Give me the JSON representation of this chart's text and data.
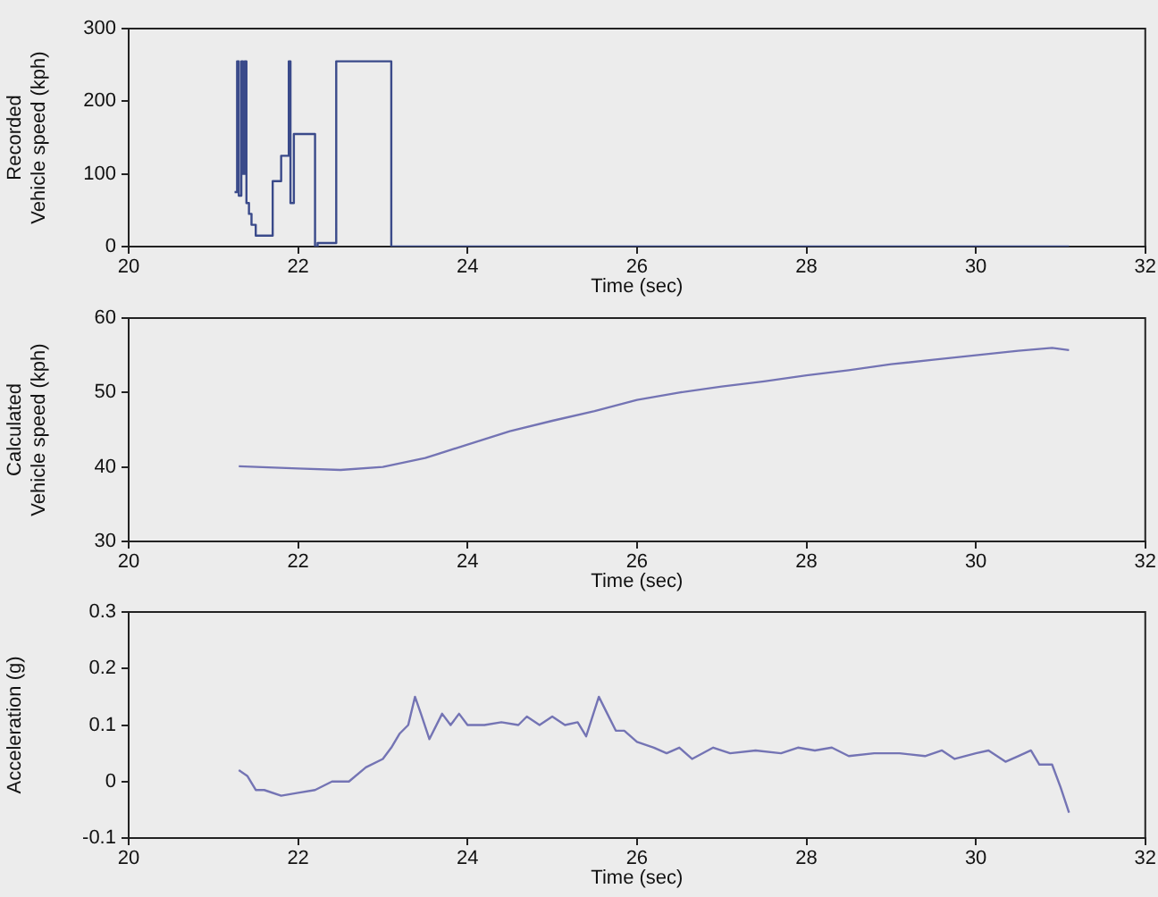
{
  "chart_data": [
    {
      "type": "step",
      "xlabel": "Time (sec)",
      "ylabel": "Recorded\nVehicle speed (kph)",
      "color": "#3a4a8a",
      "x": [
        21.25,
        21.28,
        21.3,
        21.33,
        21.35,
        21.37,
        21.39,
        21.42,
        21.45,
        21.5,
        21.7,
        21.8,
        21.89,
        21.91,
        21.95,
        22.2,
        22.23,
        22.45,
        23.1,
        31.1
      ],
      "values": [
        75,
        255,
        70,
        255,
        100,
        255,
        60,
        45,
        30,
        15,
        90,
        125,
        255,
        60,
        155,
        0,
        5,
        255,
        0,
        0
      ],
      "xlim": [
        20,
        32
      ],
      "ylim": [
        0,
        300
      ],
      "xticks": [
        20,
        22,
        24,
        26,
        28,
        30,
        32
      ],
      "yticks": [
        0,
        100,
        200,
        300
      ]
    },
    {
      "type": "line",
      "xlabel": "Time (sec)",
      "ylabel": "Calculated\nVehicle speed (kph)",
      "color": "#7474b4",
      "x": [
        21.3,
        22,
        22.5,
        23,
        23.5,
        24,
        24.5,
        25,
        25.5,
        26,
        26.5,
        27,
        27.5,
        28,
        28.5,
        29,
        29.5,
        30,
        30.5,
        30.9,
        31.1
      ],
      "values": [
        40.1,
        39.8,
        39.6,
        40.0,
        41.2,
        43.0,
        44.8,
        46.2,
        47.5,
        49.0,
        50.0,
        50.8,
        51.5,
        52.3,
        53.0,
        53.8,
        54.4,
        55.0,
        55.6,
        56.0,
        55.7
      ],
      "xlim": [
        20,
        32
      ],
      "ylim": [
        30,
        60
      ],
      "xticks": [
        20,
        22,
        24,
        26,
        28,
        30,
        32
      ],
      "yticks": [
        30,
        40,
        50,
        60
      ]
    },
    {
      "type": "line",
      "xlabel": "Time (sec)",
      "ylabel": "Acceleration (g)",
      "color": "#7474b4",
      "x": [
        21.3,
        21.4,
        21.5,
        21.6,
        21.8,
        22,
        22.2,
        22.4,
        22.6,
        22.8,
        23,
        23.1,
        23.2,
        23.3,
        23.38,
        23.45,
        23.55,
        23.7,
        23.8,
        23.9,
        24,
        24.2,
        24.4,
        24.6,
        24.7,
        24.85,
        25,
        25.15,
        25.3,
        25.4,
        25.55,
        25.65,
        25.75,
        25.85,
        26,
        26.2,
        26.35,
        26.5,
        26.65,
        26.9,
        27.1,
        27.4,
        27.7,
        27.9,
        28.1,
        28.3,
        28.5,
        28.8,
        29.1,
        29.4,
        29.6,
        29.75,
        30,
        30.15,
        30.35,
        30.5,
        30.65,
        30.75,
        30.9,
        31.0,
        31.1
      ],
      "values": [
        0.02,
        0.01,
        -0.015,
        -0.015,
        -0.025,
        -0.02,
        -0.015,
        0.0,
        0.0,
        0.025,
        0.04,
        0.06,
        0.085,
        0.1,
        0.15,
        0.12,
        0.075,
        0.12,
        0.1,
        0.12,
        0.1,
        0.1,
        0.105,
        0.1,
        0.115,
        0.1,
        0.115,
        0.1,
        0.105,
        0.08,
        0.15,
        0.12,
        0.09,
        0.09,
        0.07,
        0.06,
        0.05,
        0.06,
        0.04,
        0.06,
        0.05,
        0.055,
        0.05,
        0.06,
        0.055,
        0.06,
        0.045,
        0.05,
        0.05,
        0.045,
        0.055,
        0.04,
        0.05,
        0.055,
        0.035,
        0.045,
        0.055,
        0.03,
        0.03,
        -0.01,
        -0.055
      ],
      "xlim": [
        20,
        32
      ],
      "ylim": [
        -0.1,
        0.3
      ],
      "xticks": [
        20,
        22,
        24,
        26,
        28,
        30,
        32
      ],
      "yticks": [
        -0.1,
        0,
        0.1,
        0.2,
        0.3
      ]
    }
  ]
}
